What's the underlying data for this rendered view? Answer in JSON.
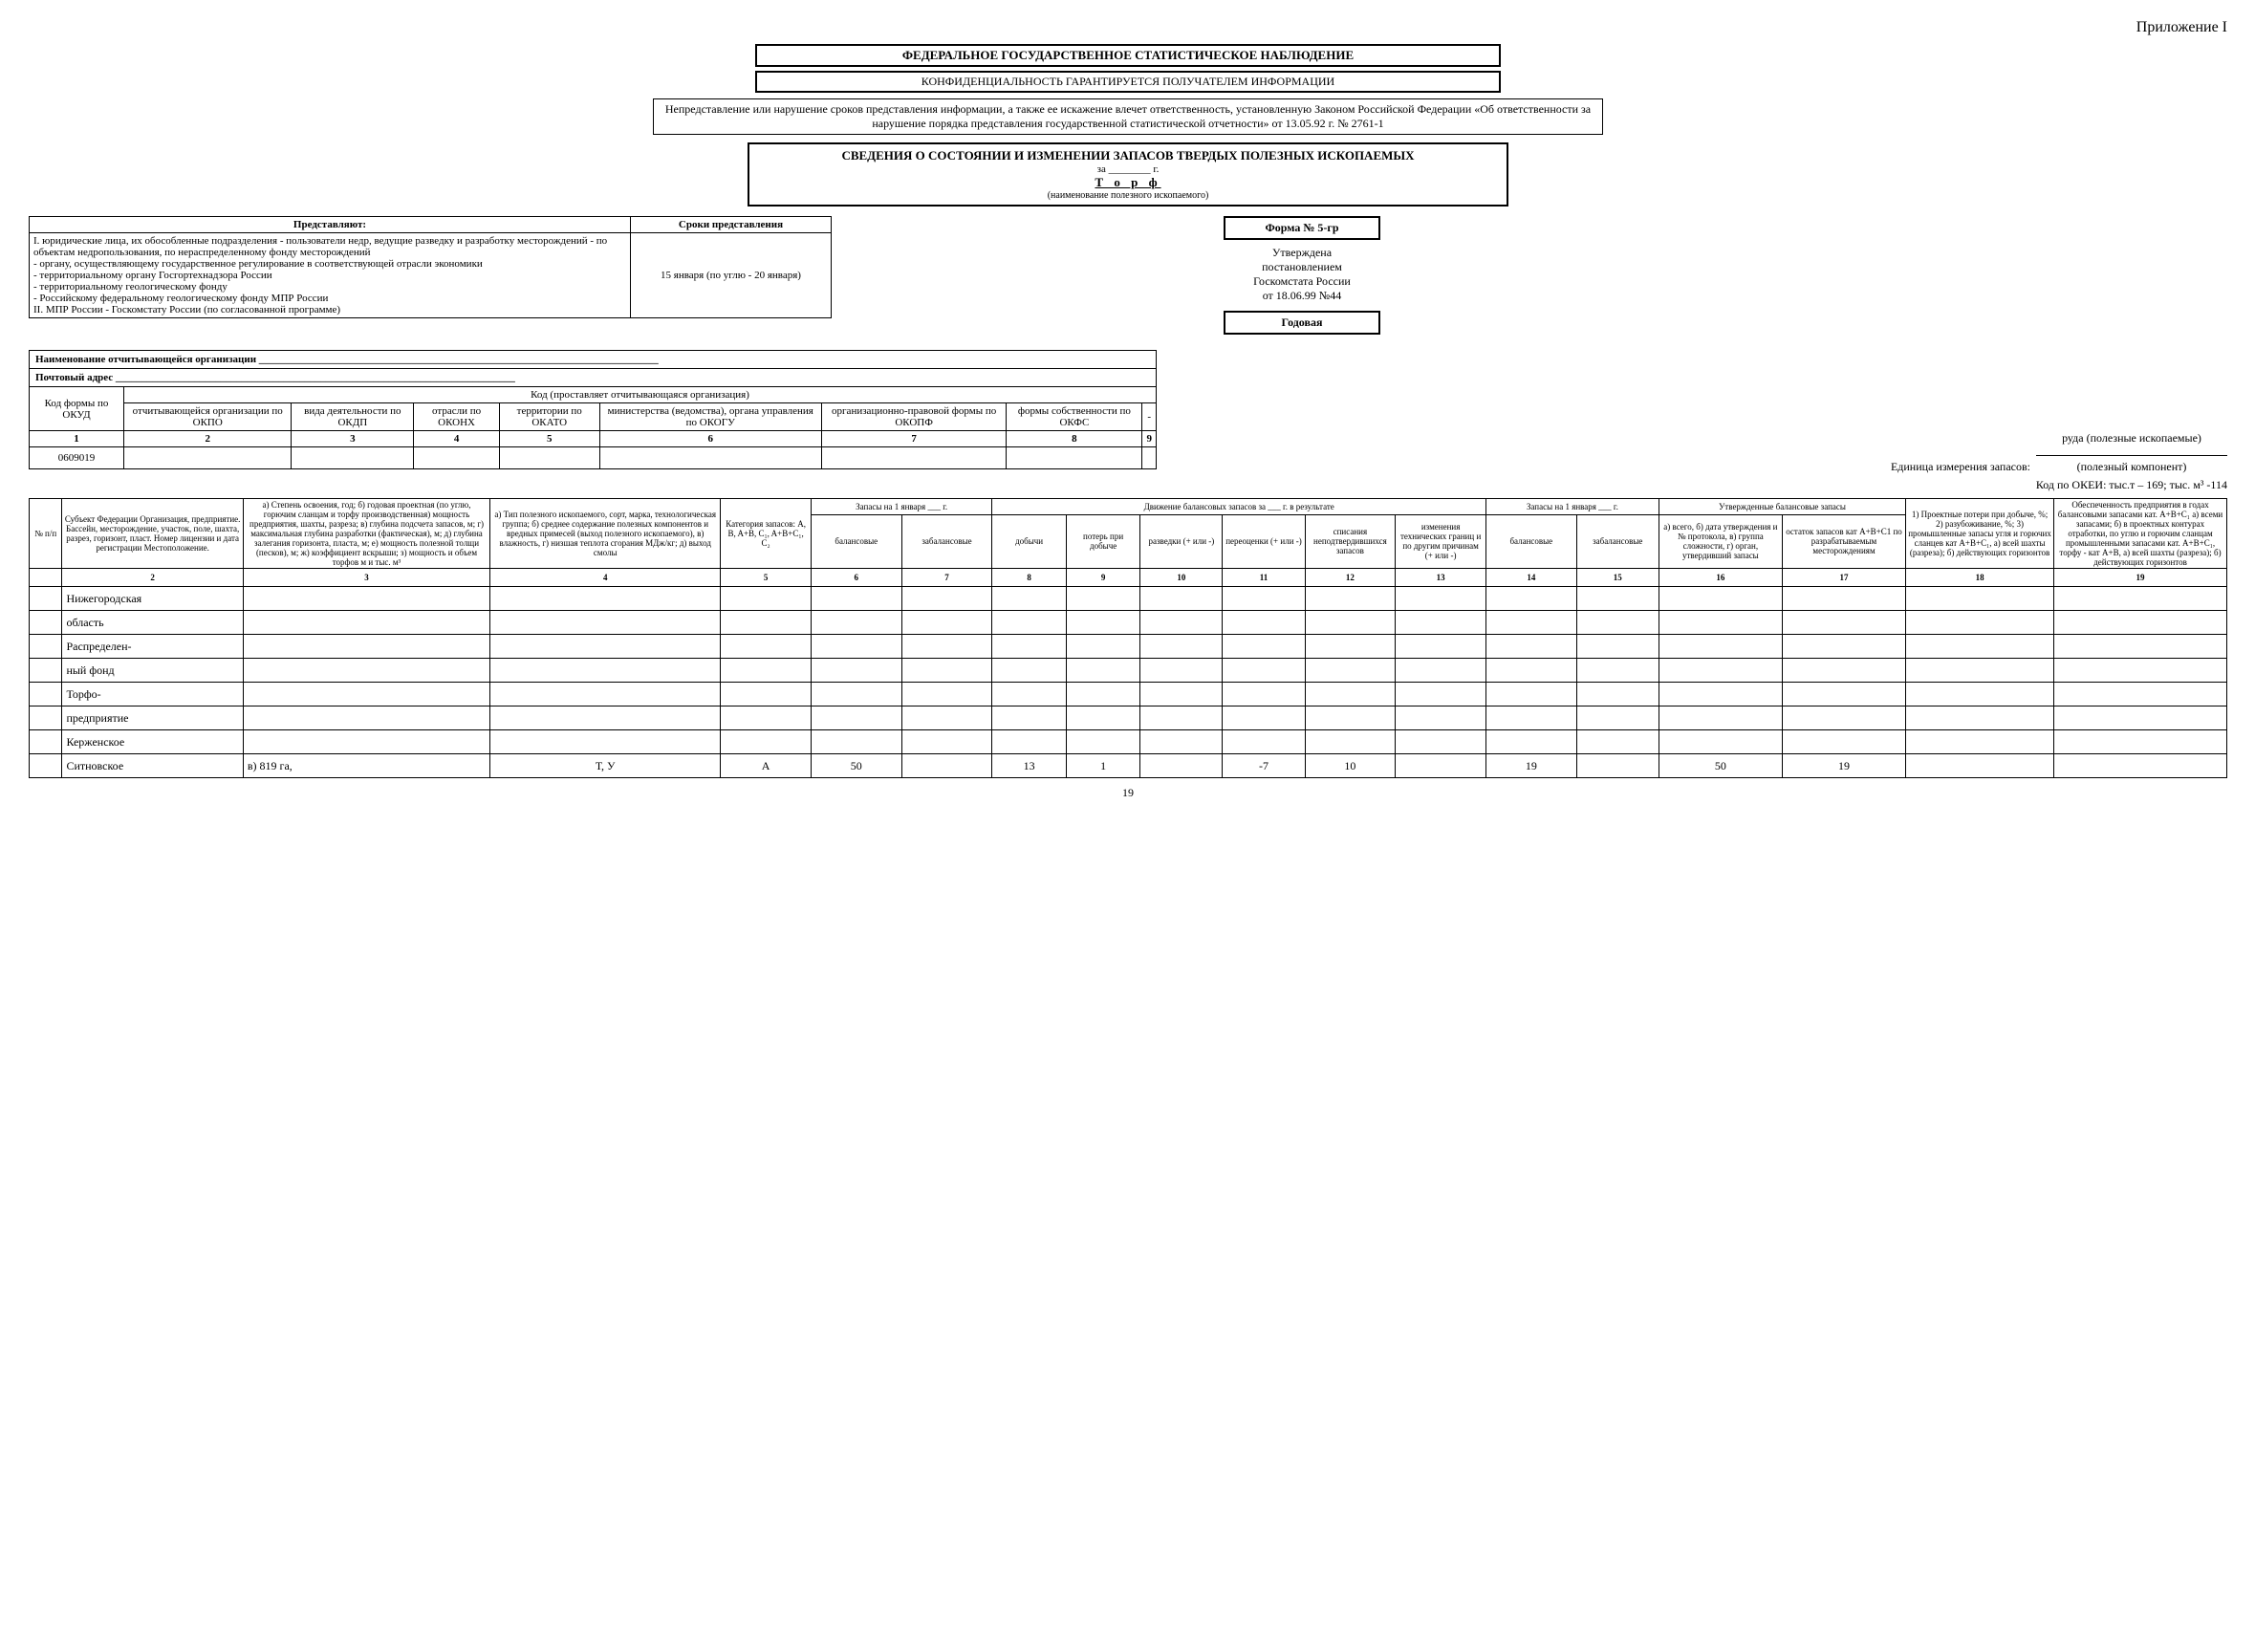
{
  "appendix": "Приложение I",
  "banners": {
    "main": "ФЕДЕРАЛЬНОЕ ГОСУДАРСТВЕННОЕ СТАТИСТИЧЕСКОЕ НАБЛЮДЕНИЕ",
    "sub": "КОНФИДЕНЦИАЛЬНОСТЬ ГАРАНТИРУЕТСЯ ПОЛУЧАТЕЛЕМ ИНФОРМАЦИИ"
  },
  "notice": "Непредставление или нарушение сроков представления информации, а также ее искажение влечет ответственность, установленную Законом Российской Федерации «Об ответственности за нарушение порядка представления государственной статистической отчетности» от 13.05.92 г. № 2761-1",
  "info": {
    "title": "СВЕДЕНИЯ О СОСТОЯНИИ И ИЗМЕНЕНИИ ЗАПАСОВ ТВЕРДЫХ ПОЛЕЗНЫХ ИСКОПАЕМЫХ",
    "year_prefix": "за ________ г.",
    "mineral": "Т о р ф",
    "mineral_caption": "(наименование полезного ископаемого)"
  },
  "present": {
    "col1_header": "Представляют:",
    "col2_header": "Сроки представления",
    "body": "I. юридические лица, их обособленные подразделения - пользователи недр, ведущие разведку и разработку месторождений - по объектам недропользования, по нераспределенному фонду месторождений\n  - органу, осуществляющему государственное регулирование в соответствующей отрасли экономики\n  - территориальному органу Госгортехнадзора России\n  - территориальному геологическому фонду\n  - Российскому федеральному геологическому фонду МПР России\nII. МПР России - Госкомстату России (по согласованной программе)",
    "deadline": "15 января (по углю - 20 января)"
  },
  "right": {
    "form": "Форма № 5-гр",
    "approved": "Утверждена\nпостановлением\nГоскомстата России\nот 18.06.99 №44",
    "period": "Годовая"
  },
  "org": {
    "name_label": "Наименование отчитывающейся организации",
    "addr_label": "Почтовый адрес",
    "okud_label": "Код формы по ОКУД",
    "codes_header": "Код (проставляет отчитывающаяся организация)",
    "cols": [
      "отчитывающейся организации по ОКПО",
      "вида деятельности по ОКДП",
      "отрасли по ОКОНХ",
      "территории по ОКАТО",
      "министерства (ведомства), органа управления по ОКОГУ",
      "организационно-правовой формы по ОКОПФ",
      "формы собственности по ОКФС",
      "-"
    ],
    "nums": [
      "1",
      "2",
      "3",
      "4",
      "5",
      "6",
      "7",
      "8",
      "9"
    ],
    "okud_value": "0609019"
  },
  "unit": {
    "label": "Единица измерения запасов:",
    "top": "руда (полезные ископаемые)",
    "bottom": "(полезный компонент)"
  },
  "okei": "Код по ОКЕИ: тыс.т – 169; тыс. м³ -114",
  "main_headers": {
    "c1": "№ п/п",
    "c2": "Субъект Федерации Организация, предприятие. Бассейн, месторождение, участок, поле, шахта, разрез, горизонт, пласт. Номер лицензии и дата регистрации Местоположение.",
    "c3": "а) Степень освоения, год; б) годовая проектная (по углю, горючим сланцам и торфу производственная) мощность предприятия, шахты, разреза; в) глубина подсчета запасов, м; г) максимальная глубина разработки (фактическая), м; д) глубина залегания горизонта, пласта, м; е) мощность полезной толщи (песков), м; ж) коэффициент вскрыши; з) мощность и объем торфов м и тыс. м³",
    "c4": "а) Тип полезного ископаемого, сорт, марка, технологическая группа; б) среднее содержание полезных компонентов и вредных примесей (выход полезного ископаемого), в) влажность, г) низшая теплота сгорания МДж/кг; д) выход смолы",
    "c5": "Категория запасов: A, B, A+B, C₁, A+B+C₁, C₂",
    "g_zap": "Запасы на 1 января ___ г.",
    "c6": "балансовые",
    "c7": "забалансовые",
    "g_mov": "Движение балансовых запасов за ___ г. в результате",
    "c8": "добычи",
    "c9": "потерь при добыче",
    "c10": "разведки (+ или -)",
    "c11": "переоценки (+ или -)",
    "c12": "списания неподтвердившихся запасов",
    "c13": "изменения технических границ и по другим причинам (+ или -)",
    "g_zap2": "Запасы на 1 января ___ г.",
    "c14": "балансовые",
    "c15": "забалансовые",
    "g_appr": "Утвержденные балансовые запасы",
    "c16": "а) всего, б) дата утверждения и № протокола, в) группа сложности, г) орган, утвердивший запасы",
    "c17": "остаток запасов кат A+B+C1 по разрабатываемым месторождениям",
    "c18": "1) Проектные потери при добыче, %; 2) разубоживание, %; 3) промышленные запасы угля и горючих сланцев кат A+B+C₁, а) всей шахты (разреза); б) действующих горизонтов",
    "c19": "Обеспеченность предприятия в годах балансовыми запасами кат. A+B+C₁ а) всеми запасами; б) в проектных контурах отработки, по углю и горючим сланцам промышленными запасами кат. A+B+C₁, торфу - кат A+B, а) всей шахты (разреза); б) действующих горизонтов"
  },
  "colnums": [
    "",
    "2",
    "3",
    "4",
    "5",
    "6",
    "7",
    "8",
    "9",
    "10",
    "11",
    "12",
    "13",
    "14",
    "15",
    "16",
    "17",
    "18",
    "19"
  ],
  "rows": [
    {
      "c2": "Нижегородская"
    },
    {
      "c2": "область"
    },
    {
      "c2": "Распределен-"
    },
    {
      "c2": "ный фонд"
    },
    {
      "c2": "Торфо-"
    },
    {
      "c2": "предприятие"
    },
    {
      "c2": "Керженское"
    },
    {
      "c2": "Ситновское",
      "c3": "в) 819 га,",
      "c4": "Т, У",
      "c5": "A",
      "c6": "50",
      "c8": "13",
      "c9": "1",
      "c11": "-7",
      "c12": "10",
      "c14": "19",
      "c16": "50",
      "c17": "19"
    }
  ],
  "pagenum": "19"
}
